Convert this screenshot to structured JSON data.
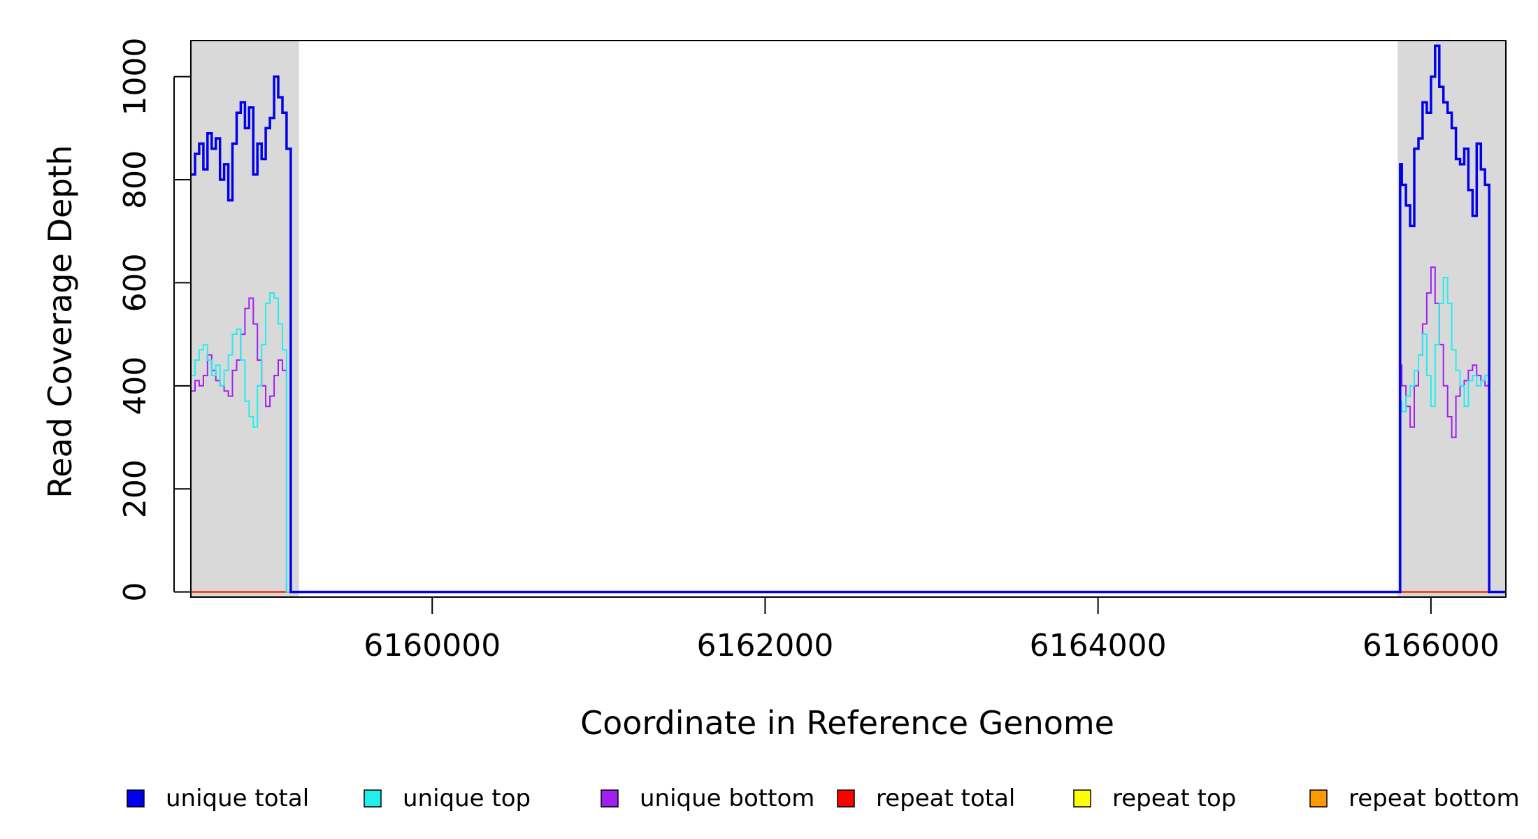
{
  "chart_data": {
    "type": "line",
    "title": "",
    "xlabel": "Coordinate in Reference Genome",
    "ylabel": "Read Coverage Depth",
    "xlim": [
      6158550,
      6166450
    ],
    "ylim": [
      -10,
      1070
    ],
    "xticks": [
      6160000,
      6162000,
      6164000,
      6166000
    ],
    "xtick_labels": [
      "6160000",
      "6162000",
      "6164000",
      "6166000"
    ],
    "yticks": [
      0,
      200,
      400,
      600,
      800,
      1000
    ],
    "ytick_labels": [
      "0",
      "200",
      "400",
      "600",
      "800",
      "1000"
    ],
    "grid": false,
    "legend_position": "bottom",
    "shaded_regions": [
      {
        "x_start": 6158550,
        "x_end": 6159200,
        "color": "#d9d9d9"
      },
      {
        "x_start": 6165800,
        "x_end": 6166450,
        "color": "#d9d9d9"
      }
    ],
    "series": [
      {
        "name": "unique total",
        "color": "#0000ee",
        "x": [
          6158550,
          6158575,
          6158600,
          6158625,
          6158650,
          6158675,
          6158700,
          6158725,
          6158750,
          6158775,
          6158800,
          6158825,
          6158850,
          6158875,
          6158900,
          6158925,
          6158950,
          6158975,
          6159000,
          6159025,
          6159050,
          6159075,
          6159100,
          6159125,
          6159150,
          6159175,
          6159200,
          6159210,
          6165800,
          6165815,
          6165825,
          6165850,
          6165875,
          6165900,
          6165925,
          6165950,
          6165975,
          6166000,
          6166025,
          6166050,
          6166075,
          6166100,
          6166125,
          6166150,
          6166175,
          6166200,
          6166225,
          6166250,
          6166275,
          6166300,
          6166325,
          6166350,
          6166375,
          6166400,
          6166425,
          6166450
        ],
        "values": [
          810,
          850,
          870,
          820,
          890,
          860,
          880,
          800,
          830,
          760,
          870,
          930,
          950,
          900,
          940,
          810,
          870,
          840,
          900,
          920,
          1000,
          960,
          930,
          860,
          0,
          0,
          0,
          0,
          0,
          830,
          790,
          750,
          710,
          860,
          880,
          950,
          930,
          1000,
          1060,
          980,
          950,
          930,
          900,
          840,
          830,
          860,
          780,
          730,
          870,
          820,
          790,
          0,
          0,
          0,
          0,
          0
        ]
      },
      {
        "name": "unique top",
        "color": "#22eeee",
        "x": [
          6158550,
          6158575,
          6158600,
          6158625,
          6158650,
          6158675,
          6158700,
          6158725,
          6158750,
          6158775,
          6158800,
          6158825,
          6158850,
          6158875,
          6158900,
          6158925,
          6158950,
          6158975,
          6159000,
          6159025,
          6159050,
          6159075,
          6159100,
          6159125,
          6159150,
          6159175,
          6159200,
          6159210,
          6165800,
          6165815,
          6165825,
          6165850,
          6165875,
          6165900,
          6165925,
          6165950,
          6165975,
          6166000,
          6166025,
          6166050,
          6166075,
          6166100,
          6166125,
          6166150,
          6166175,
          6166200,
          6166225,
          6166250,
          6166275,
          6166300,
          6166325,
          6166350,
          6166375,
          6166400,
          6166425,
          6166450
        ],
        "values": [
          420,
          450,
          470,
          480,
          450,
          420,
          440,
          400,
          430,
          460,
          500,
          510,
          450,
          370,
          340,
          320,
          400,
          480,
          560,
          580,
          570,
          520,
          470,
          0,
          0,
          0,
          0,
          0,
          0,
          370,
          350,
          380,
          400,
          430,
          460,
          500,
          420,
          360,
          480,
          560,
          610,
          560,
          470,
          430,
          400,
          360,
          410,
          420,
          400,
          410,
          420,
          0,
          0,
          0,
          0,
          0
        ]
      },
      {
        "name": "unique bottom",
        "color": "#a020f0",
        "x": [
          6158550,
          6158575,
          6158600,
          6158625,
          6158650,
          6158675,
          6158700,
          6158725,
          6158750,
          6158775,
          6158800,
          6158825,
          6158850,
          6158875,
          6158900,
          6158925,
          6158950,
          6158975,
          6159000,
          6159025,
          6159050,
          6159075,
          6159100,
          6159125,
          6159150,
          6159175,
          6159200,
          6159210,
          6165800,
          6165815,
          6165825,
          6165850,
          6165875,
          6165900,
          6165925,
          6165950,
          6165975,
          6166000,
          6166025,
          6166050,
          6166075,
          6166100,
          6166125,
          6166150,
          6166175,
          6166200,
          6166225,
          6166250,
          6166275,
          6166300,
          6166325,
          6166350,
          6166375,
          6166400,
          6166425,
          6166450
        ],
        "values": [
          390,
          410,
          400,
          420,
          460,
          430,
          410,
          400,
          390,
          380,
          430,
          450,
          500,
          550,
          570,
          520,
          450,
          400,
          360,
          380,
          420,
          450,
          430,
          0,
          0,
          0,
          0,
          0,
          0,
          440,
          400,
          360,
          320,
          400,
          460,
          520,
          580,
          630,
          560,
          480,
          400,
          340,
          300,
          380,
          400,
          410,
          430,
          440,
          420,
          410,
          400,
          0,
          0,
          0,
          0,
          0
        ]
      },
      {
        "name": "repeat total",
        "color": "#ff0000",
        "x": [
          6158550,
          6166450
        ],
        "values": [
          0,
          0
        ]
      },
      {
        "name": "repeat top",
        "color": "#ffff00",
        "x": [
          6158550,
          6166450
        ],
        "values": [
          0,
          0
        ]
      },
      {
        "name": "repeat bottom",
        "color": "#ff9900",
        "x": [
          6158550,
          6166450
        ],
        "values": [
          0,
          0
        ]
      }
    ]
  },
  "legend": [
    {
      "label": "unique total",
      "color": "#0000ee"
    },
    {
      "label": "unique top",
      "color": "#22eeee"
    },
    {
      "label": "unique bottom",
      "color": "#a020f0"
    },
    {
      "label": "repeat total",
      "color": "#ff0000"
    },
    {
      "label": "repeat top",
      "color": "#ffff00"
    },
    {
      "label": "repeat bottom",
      "color": "#ff9900"
    }
  ]
}
